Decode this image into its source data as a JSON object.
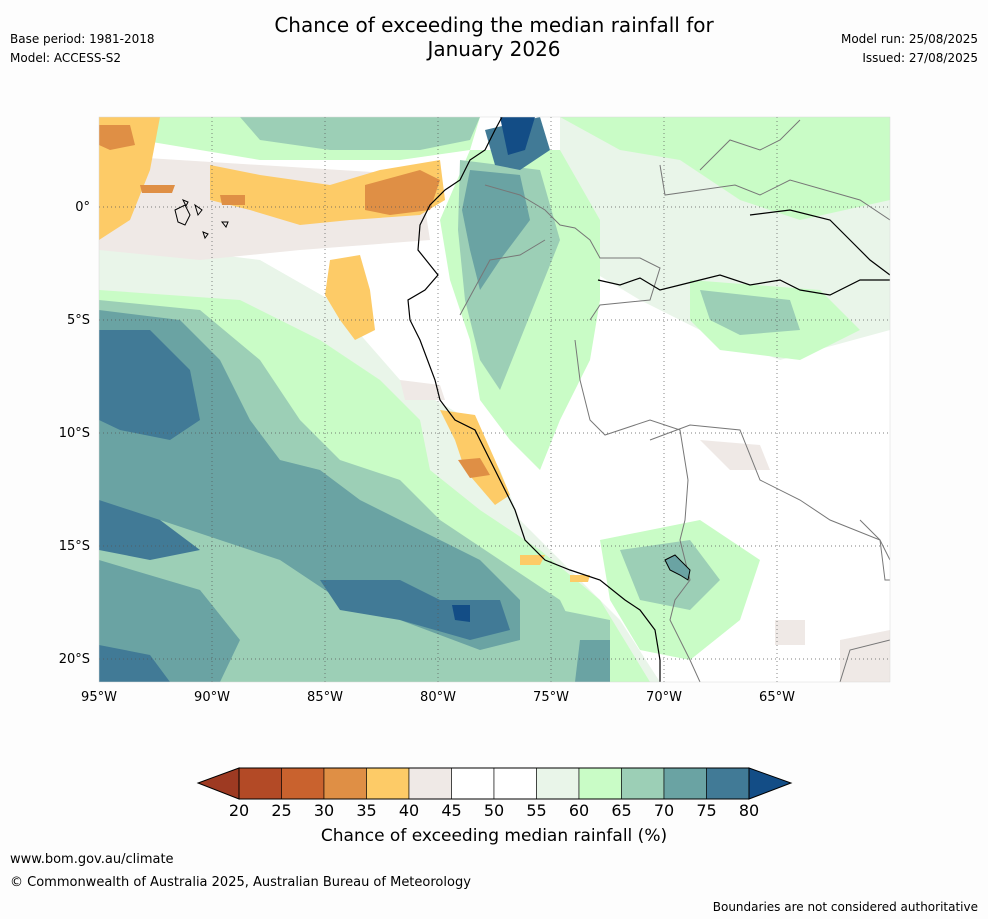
{
  "title": {
    "line1": "Chance of exceeding the median rainfall for",
    "line2": "January 2026"
  },
  "meta": {
    "base_period": "Base period: 1981-2018",
    "model": "Model: ACCESS-S2",
    "model_run": "Model run: 25/08/2025",
    "issued": "Issued: 27/08/2025"
  },
  "map": {
    "lon_ticks": [
      "95°W",
      "90°W",
      "85°W",
      "80°W",
      "75°W",
      "70°W",
      "65°W"
    ],
    "lat_ticks": [
      "0°",
      "5°S",
      "10°S",
      "15°S",
      "20°S"
    ],
    "ocean_region": "Pacific Ocean",
    "land_region": "South America (Ecuador, Peru, Colombia, Brazil, Bolivia, Chile)"
  },
  "colorbar": {
    "labels": [
      "20",
      "25",
      "30",
      "35",
      "40",
      "45",
      "50",
      "55",
      "60",
      "65",
      "70",
      "75",
      "80"
    ],
    "colors": [
      "#9e3a22",
      "#b34a26",
      "#c9622e",
      "#df8f45",
      "#fdcb67",
      "#efe9e6",
      "#ffffff",
      "#ffffff",
      "#e9f5e9",
      "#c9fcc6",
      "#9ccfb6",
      "#6aa3a3",
      "#417a96",
      "#134d86"
    ],
    "title": "Chance of exceeding median rainfall (%)"
  },
  "footer": {
    "url": "www.bom.gov.au/climate",
    "copyright": "© Commonwealth of Australia 2025, Australian Bureau of Meteorology",
    "note": "Boundaries are not considered authoritative"
  }
}
